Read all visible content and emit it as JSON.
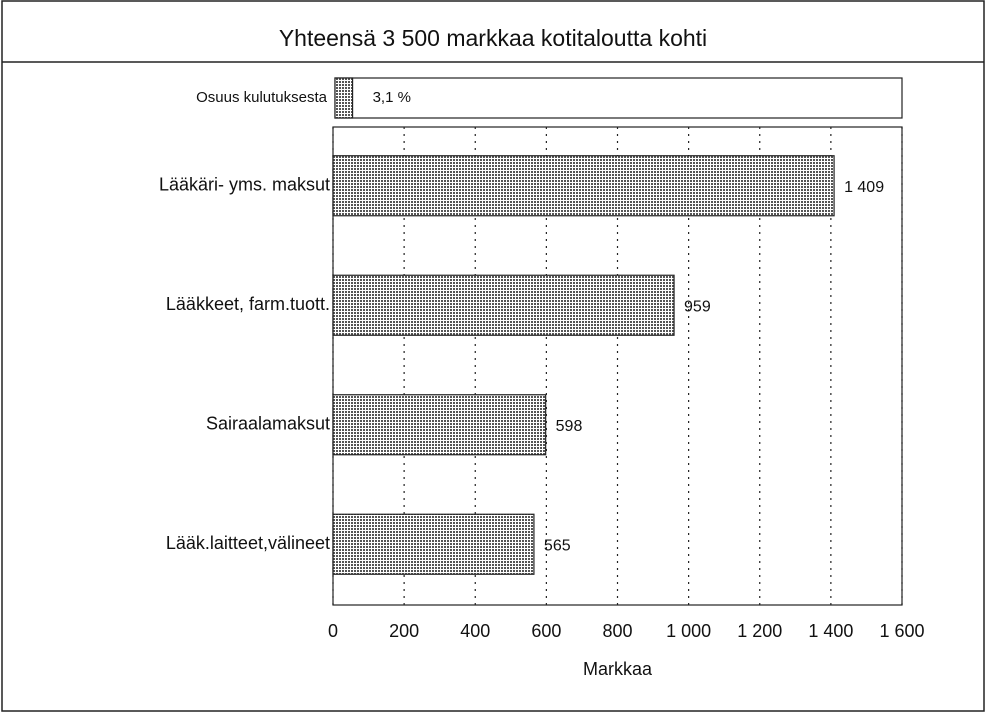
{
  "chart_data": {
    "type": "bar",
    "orientation": "horizontal",
    "title": "Yhteensä 3 500 markkaa kotitaloutta kohti",
    "share": {
      "label": "Osuus kulutuksesta",
      "value": 3.1,
      "value_label": "3,1 %",
      "xlim": [
        0,
        100
      ]
    },
    "categories": [
      "Lääkäri- yms. maksut",
      "Lääkkeet, farm.tuott.",
      "Sairaalamaksut",
      "Lääk.laitteet,välineet"
    ],
    "values": [
      1409,
      959,
      598,
      565
    ],
    "value_labels": [
      "1 409",
      "959",
      "598",
      "565"
    ],
    "color": "#9a9a9a",
    "xlabel": "Markkaa",
    "xlim": [
      0,
      1600
    ],
    "xticks": [
      0,
      200,
      400,
      600,
      800,
      {
        "value": 1000,
        "label": "1 000"
      },
      {
        "value": 1200,
        "label": "1 200"
      },
      {
        "value": 1400,
        "label": "1 400"
      },
      {
        "value": 1600,
        "label": "1 600"
      }
    ],
    "grid": true
  }
}
